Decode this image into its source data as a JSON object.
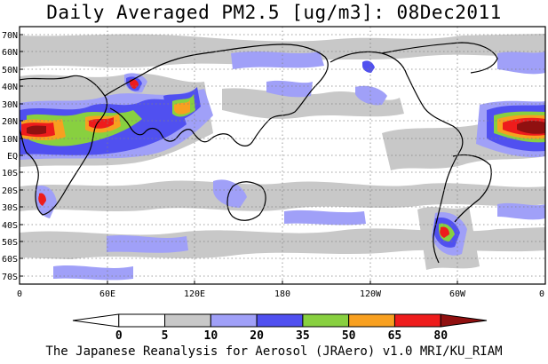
{
  "header": {
    "title": "Daily Averaged PM2.5 [ug/m3]: 08Dec2011"
  },
  "map": {
    "latitude_labels": [
      "70N",
      "60N",
      "50N",
      "40N",
      "30N",
      "20N",
      "10N",
      "EQ",
      "10S",
      "20S",
      "30S",
      "40S",
      "50S",
      "60S",
      "70S"
    ],
    "longitude_labels": [
      "0",
      "60E",
      "120E",
      "180",
      "120W",
      "60W",
      "0"
    ],
    "grid": "dotted",
    "projection": "equirectangular, 0 to 360 longitude, 75S to 75N"
  },
  "colorbar": {
    "tick_labels": [
      "0",
      "5",
      "10",
      "20",
      "35",
      "50",
      "65",
      "80"
    ],
    "bins": [
      {
        "range": "<0",
        "color": "#ffffff"
      },
      {
        "range": "0-5",
        "color": "#ffffff"
      },
      {
        "range": "5-10",
        "color": "#c8c8c8"
      },
      {
        "range": "10-20",
        "color": "#a0a0f8"
      },
      {
        "range": "20-35",
        "color": "#5050f0"
      },
      {
        "range": "35-50",
        "color": "#88d040"
      },
      {
        "range": "50-65",
        "color": "#f8a020"
      },
      {
        "range": "65-80",
        "color": "#ee1c1c"
      },
      {
        "range": ">80",
        "color": "#901010"
      }
    ]
  },
  "footer": {
    "credit": "The Japanese Reanalysis for Aerosol (JRAero) v1.0 MRI/KU_RIAM"
  }
}
